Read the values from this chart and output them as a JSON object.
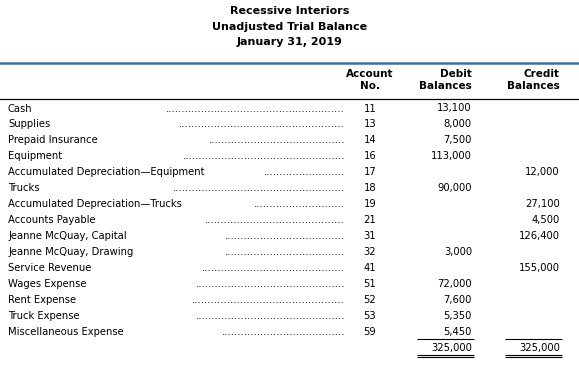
{
  "title_line1": "Recessive Interiors",
  "title_line2": "Unadjusted Trial Balance",
  "title_line3": "January 31, 2019",
  "rows": [
    {
      "account": "Cash",
      "dots": true,
      "no": "11",
      "debit": "13,100",
      "credit": ""
    },
    {
      "account": "Supplies",
      "dots": true,
      "no": "13",
      "debit": "8,000",
      "credit": ""
    },
    {
      "account": "Prepaid Insurance",
      "dots": true,
      "no": "14",
      "debit": "7,500",
      "credit": ""
    },
    {
      "account": "Equipment",
      "dots": true,
      "no": "16",
      "debit": "113,000",
      "credit": ""
    },
    {
      "account": "Accumulated Depreciation—Equipment",
      "dots": true,
      "no": "17",
      "debit": "",
      "credit": "12,000"
    },
    {
      "account": "Trucks",
      "dots": true,
      "no": "18",
      "debit": "90,000",
      "credit": ""
    },
    {
      "account": "Accumulated Depreciation—Trucks",
      "dots": true,
      "no": "19",
      "debit": "",
      "credit": "27,100"
    },
    {
      "account": "Accounts Payable",
      "dots": true,
      "no": "21",
      "debit": "",
      "credit": "4,500"
    },
    {
      "account": "Jeanne McQuay, Capital",
      "dots": true,
      "no": "31",
      "debit": "",
      "credit": "126,400"
    },
    {
      "account": "Jeanne McQuay, Drawing",
      "dots": true,
      "no": "32",
      "debit": "3,000",
      "credit": ""
    },
    {
      "account": "Service Revenue",
      "dots": true,
      "no": "41",
      "debit": "",
      "credit": "155,000"
    },
    {
      "account": "Wages Expense",
      "dots": true,
      "no": "51",
      "debit": "72,000",
      "credit": ""
    },
    {
      "account": "Rent Expense",
      "dots": true,
      "no": "52",
      "debit": "7,600",
      "credit": ""
    },
    {
      "account": "Truck Expense",
      "dots": true,
      "no": "53",
      "debit": "5,350",
      "credit": ""
    },
    {
      "account": "Miscellaneous Expense",
      "dots": true,
      "no": "59",
      "debit": "5,450",
      "credit": ""
    }
  ],
  "totals_debit": "325,000",
  "totals_credit": "325,000",
  "bg_color": "#ffffff",
  "text_color": "#000000",
  "title_fontsize": 8.0,
  "header_fontsize": 7.5,
  "row_fontsize": 7.2,
  "fig_width": 5.79,
  "fig_height": 3.71,
  "dpi": 100
}
